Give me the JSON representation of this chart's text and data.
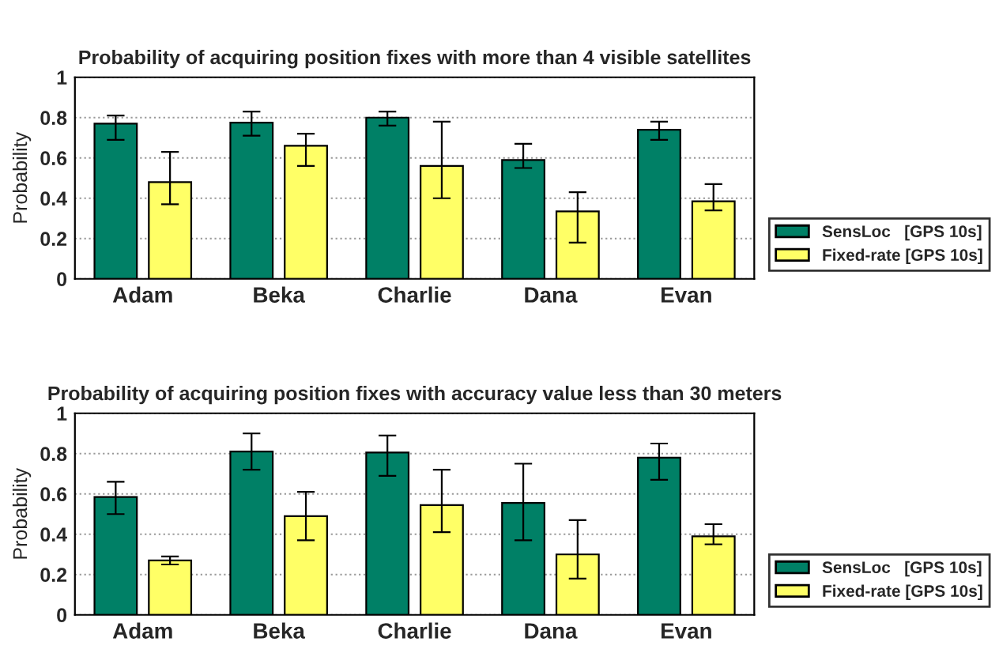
{
  "chart_data": [
    {
      "type": "bar",
      "title": "Probability of acquiring position fixes with more than 4 visible satellites",
      "ylabel": "Probability",
      "categories": [
        "Adam",
        "Beka",
        "Charlie",
        "Dana",
        "Evan"
      ],
      "ylim": [
        0,
        1
      ],
      "yticks": [
        0,
        0.2,
        0.4,
        0.6,
        0.8,
        1
      ],
      "grid": "y",
      "legend": "bottom right",
      "series": [
        {
          "name": "SensLoc   [GPS 10s]",
          "color": "#008066",
          "values": [
            0.77,
            0.775,
            0.8,
            0.59,
            0.74
          ],
          "errors": [
            [
              0.69,
              0.81
            ],
            [
              0.71,
              0.83
            ],
            [
              0.76,
              0.83
            ],
            [
              0.55,
              0.67
            ],
            [
              0.69,
              0.78
            ]
          ]
        },
        {
          "name": "Fixed-rate [GPS 10s]",
          "color": "#ffff66",
          "values": [
            0.48,
            0.66,
            0.56,
            0.335,
            0.385
          ],
          "errors": [
            [
              0.37,
              0.63
            ],
            [
              0.56,
              0.72
            ],
            [
              0.4,
              0.78
            ],
            [
              0.18,
              0.43
            ],
            [
              0.34,
              0.47
            ]
          ]
        }
      ]
    },
    {
      "type": "bar",
      "title": "Probability of acquiring position fixes with accuracy value less than 30 meters",
      "ylabel": "Probability",
      "categories": [
        "Adam",
        "Beka",
        "Charlie",
        "Dana",
        "Evan"
      ],
      "ylim": [
        0,
        1
      ],
      "yticks": [
        0,
        0.2,
        0.4,
        0.6,
        0.8,
        1
      ],
      "grid": "y",
      "legend": "bottom right",
      "series": [
        {
          "name": "SensLoc   [GPS 10s]",
          "color": "#008066",
          "values": [
            0.585,
            0.81,
            0.805,
            0.555,
            0.78
          ],
          "errors": [
            [
              0.5,
              0.66
            ],
            [
              0.72,
              0.9
            ],
            [
              0.69,
              0.89
            ],
            [
              0.37,
              0.75
            ],
            [
              0.67,
              0.85
            ]
          ]
        },
        {
          "name": "Fixed-rate [GPS 10s]",
          "color": "#ffff66",
          "values": [
            0.27,
            0.49,
            0.545,
            0.3,
            0.39
          ],
          "errors": [
            [
              0.25,
              0.29
            ],
            [
              0.37,
              0.61
            ],
            [
              0.41,
              0.72
            ],
            [
              0.18,
              0.47
            ],
            [
              0.35,
              0.45
            ]
          ]
        }
      ]
    }
  ]
}
